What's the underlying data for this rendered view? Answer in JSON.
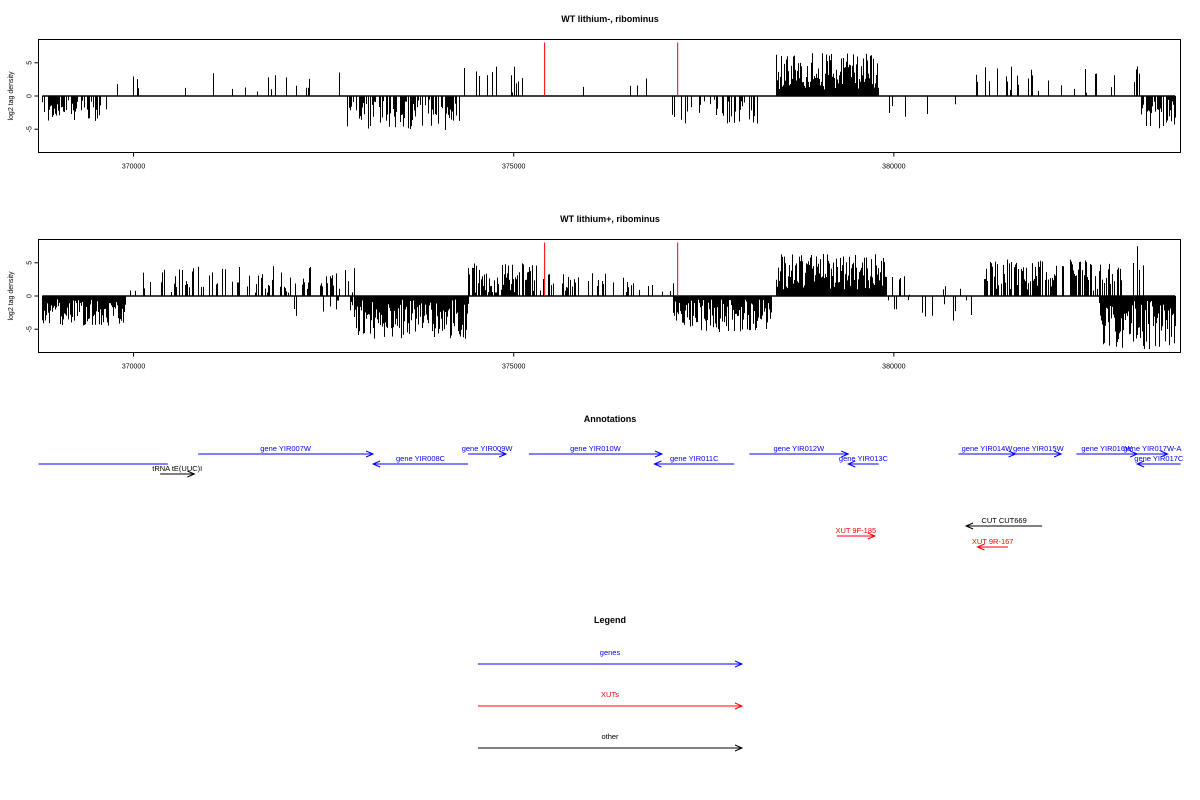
{
  "chart_data": [
    {
      "type": "bar",
      "title": "WT lithium-, ribominus",
      "ylabel": "log2 tag density",
      "xlim": [
        368750,
        383770
      ],
      "ylim": [
        -8.5,
        8.5
      ],
      "x_ticks": [
        370000,
        375000,
        380000
      ],
      "x_tick_labels": [
        "370000",
        "375000",
        "380000"
      ],
      "y_ticks": [
        -5,
        0,
        5
      ],
      "y_tick_labels": [
        "-5",
        "0",
        "5"
      ],
      "baseline": 0,
      "highlight_x": [
        375400,
        377150
      ],
      "highlight_color": "#ff0000",
      "bar_color": "#000000",
      "segments": [
        {
          "start": 368800,
          "end": 369550,
          "density": 0.6,
          "min": -3.8,
          "max": -0.5
        },
        {
          "start": 369550,
          "end": 369700,
          "density": 0.3,
          "min": -3.5,
          "max": -1
        },
        {
          "start": 369700,
          "end": 372800,
          "density": 0.05,
          "min": 0.5,
          "max": 3.8
        },
        {
          "start": 372800,
          "end": 374300,
          "density": 0.5,
          "min": -5.2,
          "max": -0.5
        },
        {
          "start": 374300,
          "end": 375200,
          "density": 0.15,
          "min": 0.5,
          "max": 4.5
        },
        {
          "start": 375200,
          "end": 377000,
          "density": 0.03,
          "min": 0.5,
          "max": 2.8
        },
        {
          "start": 377050,
          "end": 378200,
          "density": 0.4,
          "min": -4.2,
          "max": -0.5
        },
        {
          "start": 378450,
          "end": 379800,
          "density": 1.0,
          "min": 1,
          "max": 6.5
        },
        {
          "start": 379800,
          "end": 381000,
          "density": 0.03,
          "min": -3.5,
          "max": -0.5
        },
        {
          "start": 381000,
          "end": 383250,
          "density": 0.12,
          "min": 0.5,
          "max": 4.5
        },
        {
          "start": 383250,
          "end": 383700,
          "density": 0.8,
          "min": -5,
          "max": -0.5
        }
      ]
    },
    {
      "type": "bar",
      "title": "WT lithium+, ribominus",
      "ylabel": "log2 tag density",
      "xlim": [
        368750,
        383770
      ],
      "ylim": [
        -8.5,
        8.5
      ],
      "x_ticks": [
        370000,
        375000,
        380000
      ],
      "x_tick_labels": [
        "370000",
        "375000",
        "380000"
      ],
      "y_ticks": [
        -5,
        0,
        5
      ],
      "y_tick_labels": [
        "-5",
        "0",
        "5"
      ],
      "baseline": 0,
      "highlight_x": [
        375400,
        377150
      ],
      "highlight_color": "#ff0000",
      "bar_color": "#000000",
      "segments": [
        {
          "start": 368800,
          "end": 369900,
          "density": 1.0,
          "min": -4.5,
          "max": -0.5
        },
        {
          "start": 369900,
          "end": 372900,
          "density": 0.3,
          "min": 0.5,
          "max": 4.5
        },
        {
          "start": 372000,
          "end": 372900,
          "density": 0.1,
          "min": -3,
          "max": -0.5
        },
        {
          "start": 372900,
          "end": 374400,
          "density": 1.0,
          "min": -6.5,
          "max": -0.5
        },
        {
          "start": 374400,
          "end": 375300,
          "density": 0.8,
          "min": 0.5,
          "max": 5
        },
        {
          "start": 375300,
          "end": 377100,
          "density": 0.25,
          "min": 0.5,
          "max": 3.5
        },
        {
          "start": 377100,
          "end": 378400,
          "density": 1.0,
          "min": -5.5,
          "max": -0.5
        },
        {
          "start": 378450,
          "end": 379900,
          "density": 1.0,
          "min": 1,
          "max": 6.5
        },
        {
          "start": 379900,
          "end": 381200,
          "density": 0.2,
          "min": -4,
          "max": 3
        },
        {
          "start": 381200,
          "end": 383000,
          "density": 0.6,
          "min": 0.5,
          "max": 5.5
        },
        {
          "start": 382700,
          "end": 383700,
          "density": 1.0,
          "min": -8,
          "max": -0.5
        },
        {
          "start": 383150,
          "end": 383300,
          "density": 0.2,
          "min": 3,
          "max": 8.5
        }
      ]
    }
  ],
  "annotations": {
    "title": "Annotations",
    "features": [
      {
        "kind": "genes",
        "label": "",
        "start": 368750,
        "end": 370450,
        "strand": "-",
        "row": 2,
        "arrowhead": false
      },
      {
        "kind": "other",
        "label": "tRNA tE(UUC)I",
        "start": 370350,
        "end": 370800,
        "strand": "+",
        "row": 3
      },
      {
        "kind": "genes",
        "label": "gene YIR007W",
        "start": 370850,
        "end": 373150,
        "strand": "+",
        "row": 1
      },
      {
        "kind": "genes",
        "label": "gene YIR008C",
        "start": 373150,
        "end": 374400,
        "strand": "-",
        "row": 2
      },
      {
        "kind": "genes",
        "label": "gene YIR009W",
        "start": 374400,
        "end": 374900,
        "strand": "+",
        "row": 1
      },
      {
        "kind": "genes",
        "label": "gene YIR010W",
        "start": 375200,
        "end": 376950,
        "strand": "+",
        "row": 1
      },
      {
        "kind": "genes",
        "label": "gene YIR011C",
        "start": 376850,
        "end": 377900,
        "strand": "-",
        "row": 2
      },
      {
        "kind": "genes",
        "label": "gene YIR012W",
        "start": 378100,
        "end": 379400,
        "strand": "+",
        "row": 1
      },
      {
        "kind": "genes",
        "label": "gene YIR013C",
        "start": 379400,
        "end": 379800,
        "strand": "-",
        "row": 2
      },
      {
        "kind": "genes",
        "label": "gene YIR014W",
        "start": 380850,
        "end": 381600,
        "strand": "+",
        "row": 1
      },
      {
        "kind": "genes",
        "label": "gene YIR015W",
        "start": 381600,
        "end": 382200,
        "strand": "+",
        "row": 1
      },
      {
        "kind": "genes",
        "label": "gene YIR016W",
        "start": 382400,
        "end": 383200,
        "strand": "+",
        "row": 1
      },
      {
        "kind": "genes",
        "label": "gene YIR017W-A",
        "start": 383200,
        "end": 383600,
        "strand": "+",
        "row": 1
      },
      {
        "kind": "genes",
        "label": "gene YIR017C",
        "start": 383200,
        "end": 383770,
        "strand": "-",
        "row": 2
      },
      {
        "kind": "other",
        "label": "CUT CUT669",
        "start": 380950,
        "end": 381950,
        "strand": "-",
        "row": 4
      },
      {
        "kind": "XUTs",
        "label": "XUT 9F-185",
        "start": 379250,
        "end": 379750,
        "strand": "+",
        "row": 5
      },
      {
        "kind": "XUTs",
        "label": "XUT 9R-167",
        "start": 381100,
        "end": 381500,
        "strand": "-",
        "row": 6
      }
    ]
  },
  "legend": {
    "title": "Legend",
    "items": [
      {
        "label": "genes",
        "color": "#0000ff"
      },
      {
        "label": "XUTs",
        "color": "#ff0000"
      },
      {
        "label": "other",
        "color": "#000000"
      }
    ]
  },
  "colors": {
    "genes": "#0000ff",
    "XUTs": "#ff0000",
    "other": "#000000"
  }
}
